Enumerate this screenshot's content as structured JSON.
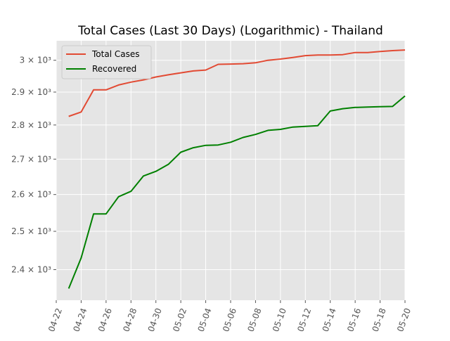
{
  "chart_data": {
    "type": "line",
    "title": "Total Cases (Last 30 Days) (Logarithmic) - Thailand",
    "xlabel": "",
    "ylabel": "",
    "yscale": "log",
    "grid": true,
    "legend_position": "top-left",
    "x_ticks": [
      "04-22",
      "04-24",
      "04-26",
      "04-28",
      "04-30",
      "05-02",
      "05-04",
      "05-06",
      "05-08",
      "05-10",
      "05-12",
      "05-14",
      "05-16",
      "05-18",
      "05-20"
    ],
    "y_ticks": [
      {
        "value": 2400,
        "label": "2.4 × 10³"
      },
      {
        "value": 2500,
        "label": "2.5 × 10³"
      },
      {
        "value": 2600,
        "label": "2.6 × 10³"
      },
      {
        "value": 2700,
        "label": "2.7 × 10³"
      },
      {
        "value": 2800,
        "label": "2.8 × 10³"
      },
      {
        "value": 2900,
        "label": "2.9 × 10³"
      },
      {
        "value": 3000,
        "label": "3 × 10³"
      }
    ],
    "xlim": [
      "2020-04-22",
      "2020-05-20"
    ],
    "ylim": [
      2323,
      3063
    ],
    "x": [
      "2020-04-23",
      "2020-04-24",
      "2020-04-25",
      "2020-04-26",
      "2020-04-27",
      "2020-04-28",
      "2020-04-29",
      "2020-04-30",
      "2020-05-01",
      "2020-05-02",
      "2020-05-03",
      "2020-05-04",
      "2020-05-05",
      "2020-05-06",
      "2020-05-07",
      "2020-05-08",
      "2020-05-09",
      "2020-05-10",
      "2020-05-11",
      "2020-05-12",
      "2020-05-13",
      "2020-05-14",
      "2020-05-15",
      "2020-05-16",
      "2020-05-17",
      "2020-05-18",
      "2020-05-19"
    ],
    "series": [
      {
        "name": "Total Cases",
        "color": "#e24a33",
        "values": [
          2826,
          2839,
          2907,
          2907,
          2922,
          2931,
          2938,
          2947,
          2954,
          2960,
          2966,
          2969,
          2987,
          2988,
          2989,
          2992,
          3000,
          3004,
          3009,
          3015,
          3017,
          3017,
          3018,
          3025,
          3025,
          3028,
          3031
        ]
      },
      {
        "name": "Recovered",
        "color": "#008000",
        "values": [
          2352,
          2430,
          2547,
          2547,
          2594,
          2609,
          2652,
          2665,
          2685,
          2720,
          2733,
          2740,
          2741,
          2749,
          2763,
          2772,
          2784,
          2787,
          2794,
          2796,
          2798,
          2842,
          2849,
          2853,
          2854,
          2855,
          2856
        ]
      }
    ],
    "extra_points": [
      {
        "series": "Total Cases",
        "x": "2020-05-20",
        "value": 3033
      },
      {
        "series": "Recovered",
        "x": "2020-05-20",
        "value": 2888
      }
    ]
  }
}
